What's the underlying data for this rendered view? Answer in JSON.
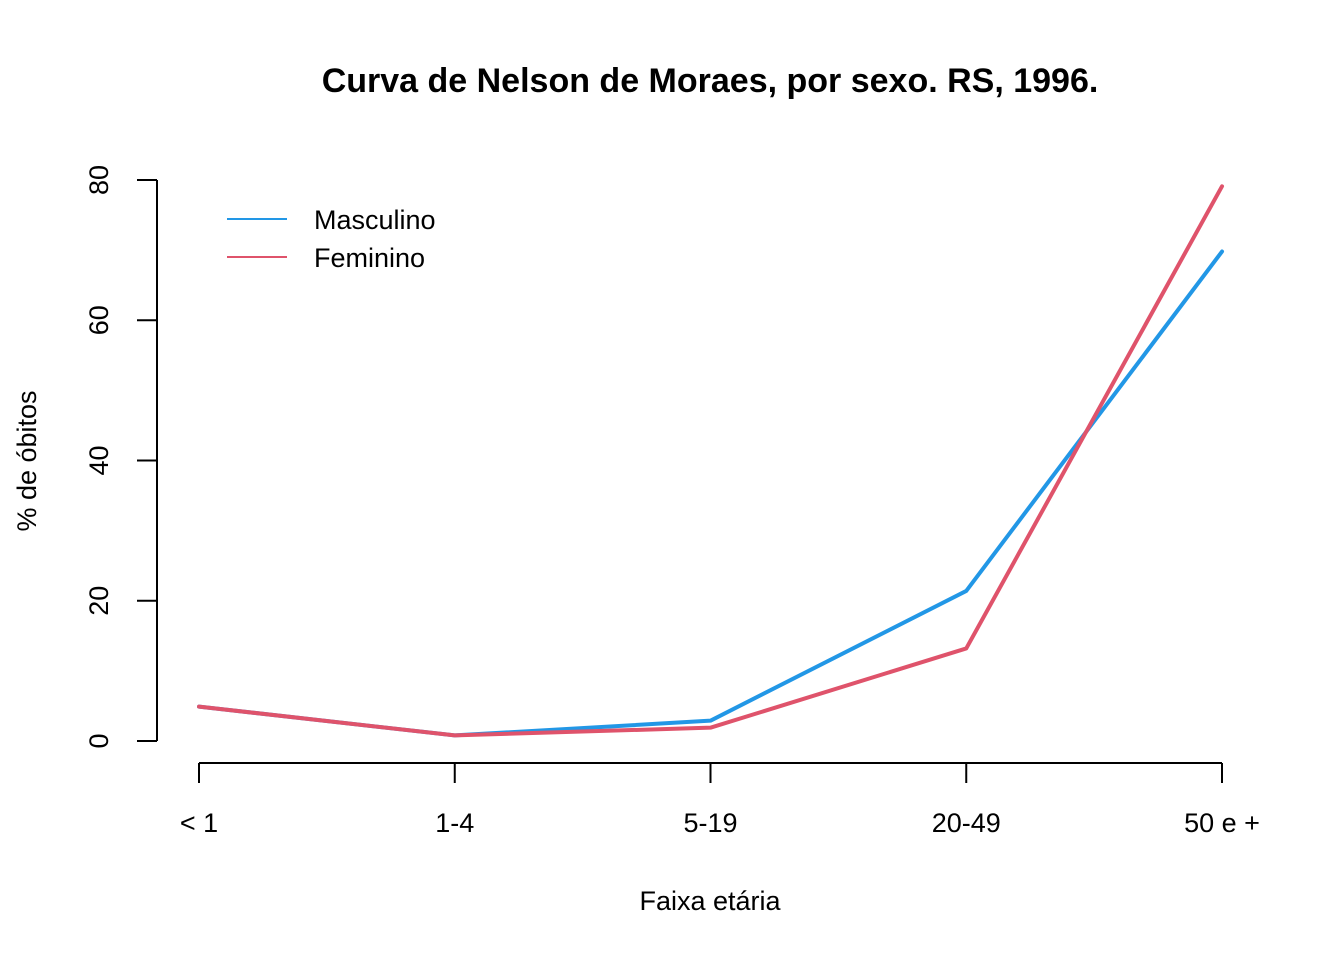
{
  "chart_data": {
    "type": "line",
    "title": "Curva de Nelson de Moraes, por sexo. RS, 1996.",
    "xlabel": "Faixa etária",
    "ylabel": "% de óbitos",
    "categories": [
      "< 1",
      "1-4",
      "5-19",
      "20-49",
      "50 e +"
    ],
    "ylim": [
      0,
      80
    ],
    "yticks": [
      0,
      20,
      40,
      60,
      80
    ],
    "grid": false,
    "legend_position": "top-left",
    "series": [
      {
        "name": "Masculino",
        "color": "#2297E6",
        "values": [
          4.9,
          0.8,
          2.9,
          21.4,
          69.8
        ]
      },
      {
        "name": "Feminino",
        "color": "#DF536B",
        "values": [
          4.9,
          0.8,
          1.9,
          13.2,
          79.1
        ]
      }
    ]
  }
}
